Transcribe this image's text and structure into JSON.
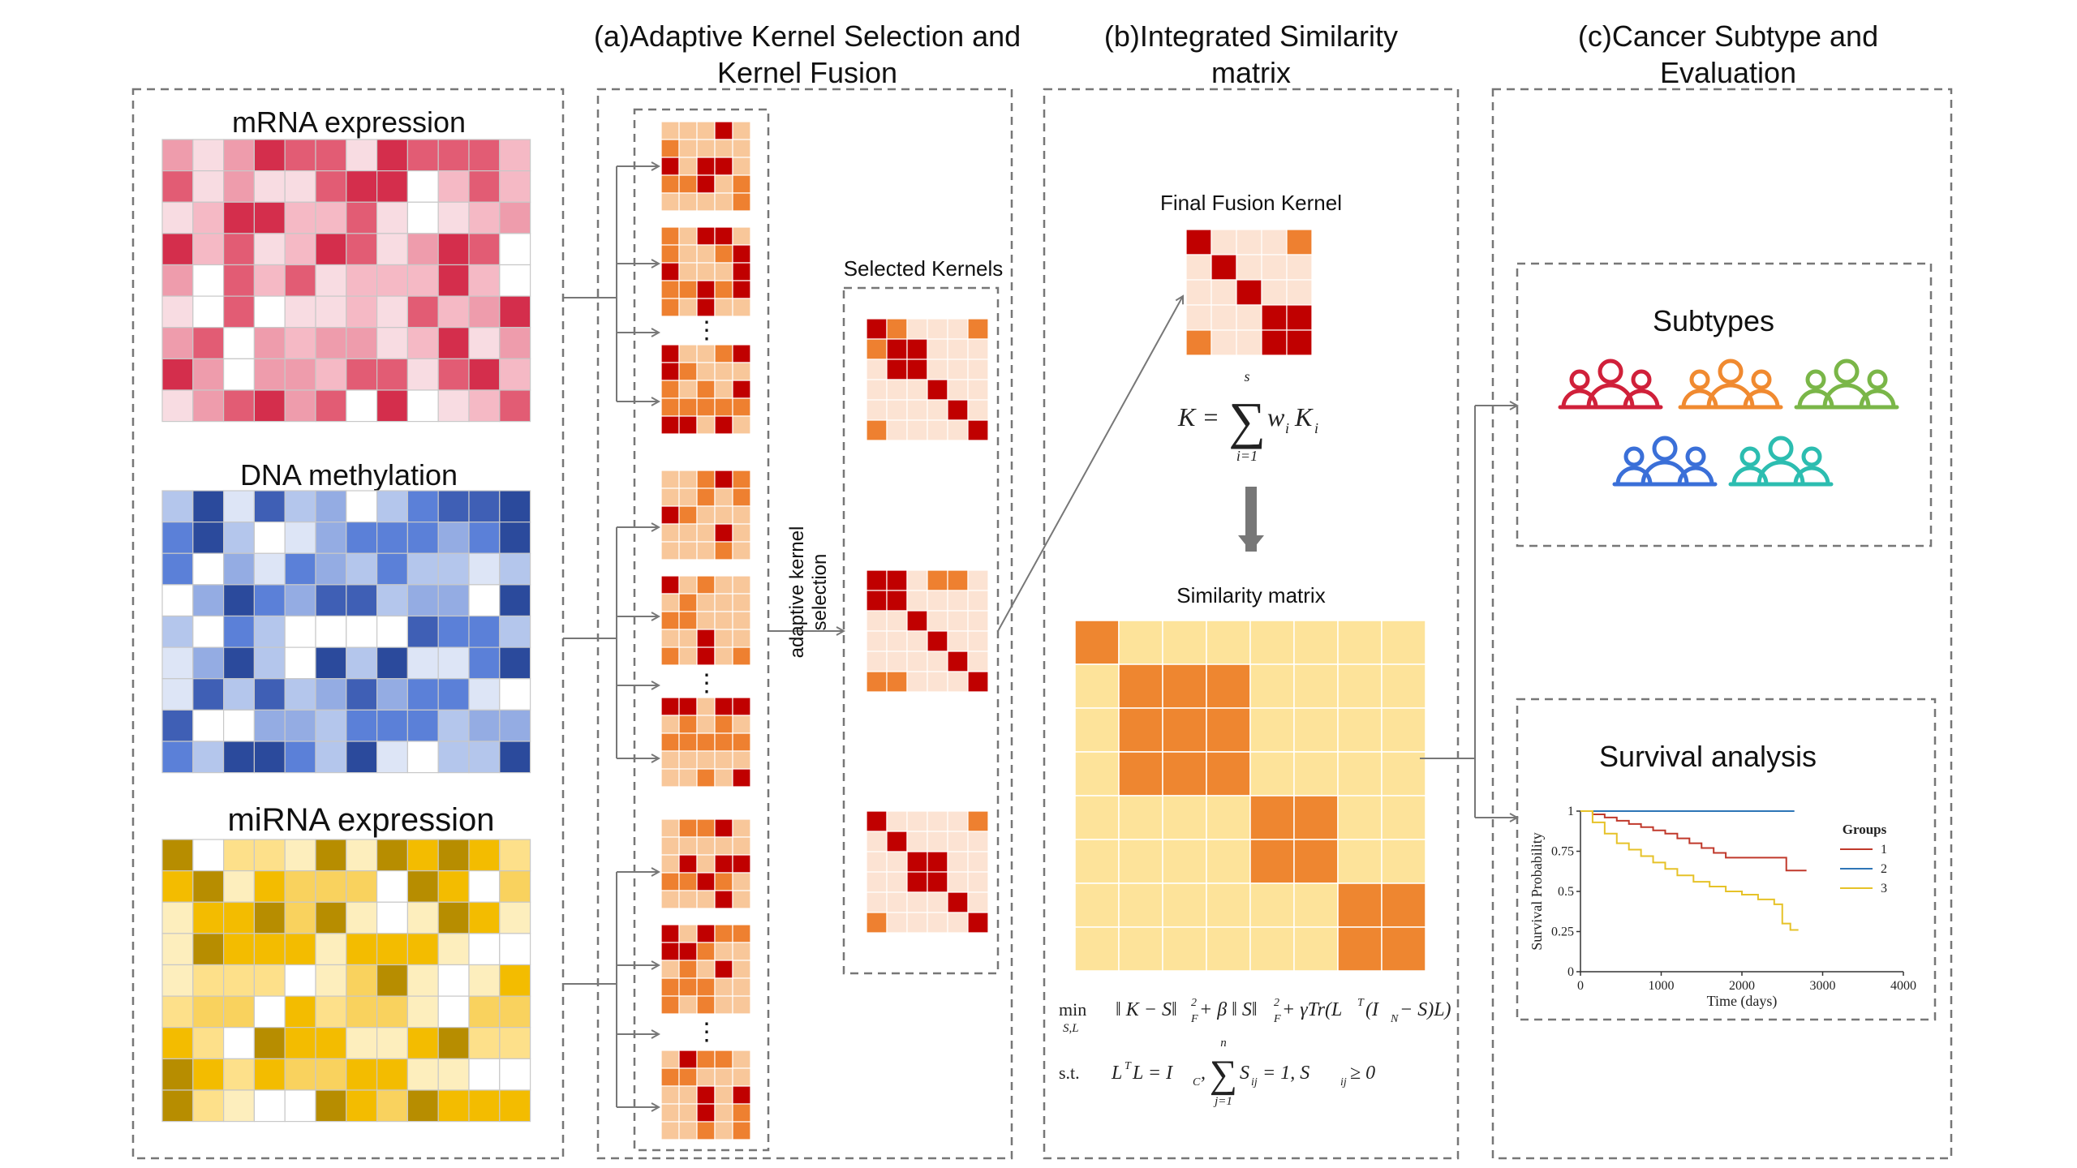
{
  "panels": {
    "a_title": [
      "(a)Adaptive Kernel Selection and",
      "Kernel Fusion"
    ],
    "b_title": [
      "(b)Integrated Similarity",
      "matrix"
    ],
    "c_title": [
      "(c)Cancer Subtype and",
      "Evaluation"
    ]
  },
  "omics": [
    {
      "label": "mRNA expression",
      "palette": [
        "#ffffff",
        "#f8dce2",
        "#f5b9c5",
        "#ee9cac",
        "#e25c74",
        "#d42e4c"
      ]
    },
    {
      "label": "DNA methylation",
      "palette": [
        "#ffffff",
        "#dde5f6",
        "#b4c6ec",
        "#94ace3",
        "#5b80d8",
        "#3f5fb5",
        "#2b4a9c"
      ]
    },
    {
      "label": "miRNA expression",
      "palette": [
        "#ffffff",
        "#fdeebd",
        "#fde08a",
        "#f9d25e",
        "#f3bc00",
        "#b78d00"
      ]
    }
  ],
  "kernel_colors": {
    "dark": "#c00000",
    "mid": "#ee8030",
    "light": "#f8c79a",
    "pale": "#fce3d3"
  },
  "selection_label": [
    "adaptive kernel",
    "selection"
  ],
  "selected_kernels_label": "Selected Kernels",
  "final_kernel_label": "Final Fusion Kernel",
  "fusion_formula": {
    "lhs": "K =",
    "sum_upper": "s",
    "sum_lower": "i=1",
    "term": "w",
    "term_sub": "i",
    "term2": "K",
    "term2_sub": "i"
  },
  "similarity_label": "Similarity matrix",
  "similarity_colors": {
    "block": "#ee8630",
    "background": "#fde39a"
  },
  "optimization": {
    "min": "min",
    "min_sub": "S,L",
    "objective": "‖ K − S‖",
    "objective_tail": " + β ‖ S‖",
    "objective_tail2": " + γTr(L",
    "objective_tail3": "(I",
    "objective_tail4": " − S)L)",
    "st": "s.t.",
    "constraint1": "L",
    "constraint1b": "L = I",
    "constraint1c": ",",
    "sum_upper": "n",
    "sum_lower": "j=1",
    "constraint2": "S",
    "constraint2b": " = 1, S",
    "constraint2c": " ≥ 0",
    "sup_F": "2",
    "sub_F": "F",
    "sup_T": "T",
    "sub_N": "N",
    "sub_C": "C",
    "sub_ij": "ij"
  },
  "subtypes": {
    "title": "Subtypes",
    "group_colors": [
      "#d0203a",
      "#f08a30",
      "#7ab648",
      "#3a6fd8",
      "#2cbdb0"
    ]
  },
  "survival": {
    "title": "Survival analysis",
    "chart_data": {
      "type": "line",
      "xlabel": "Time (days)",
      "ylabel": "Survival Probability",
      "xlim": [
        0,
        4000
      ],
      "ylim": [
        0,
        1
      ],
      "xticks": [
        "0",
        "1000",
        "2000",
        "3000",
        "4000"
      ],
      "yticks": [
        "0",
        "0.25",
        "0.5",
        "0.75",
        "1"
      ],
      "legend_title": "Groups",
      "legend_position": "top-right",
      "series": [
        {
          "name": "1",
          "color": "#c0392b",
          "x": [
            0,
            150,
            300,
            450,
            600,
            750,
            900,
            1050,
            1200,
            1350,
            1500,
            1650,
            1800,
            2000,
            2200,
            2400,
            2550,
            2650,
            2800
          ],
          "y": [
            1,
            0.98,
            0.96,
            0.94,
            0.92,
            0.9,
            0.88,
            0.86,
            0.83,
            0.8,
            0.77,
            0.74,
            0.71,
            0.71,
            0.71,
            0.71,
            0.63,
            0.63,
            0.63
          ]
        },
        {
          "name": "2",
          "color": "#2e75b6",
          "x": [
            0,
            2650
          ],
          "y": [
            1,
            1
          ]
        },
        {
          "name": "3",
          "color": "#e6c228",
          "x": [
            0,
            150,
            300,
            450,
            600,
            750,
            900,
            1050,
            1200,
            1400,
            1600,
            1800,
            2000,
            2200,
            2400,
            2500,
            2600,
            2700
          ],
          "y": [
            1,
            0.93,
            0.86,
            0.8,
            0.76,
            0.72,
            0.68,
            0.64,
            0.6,
            0.56,
            0.53,
            0.5,
            0.48,
            0.45,
            0.42,
            0.3,
            0.26,
            0.26
          ]
        }
      ]
    }
  }
}
